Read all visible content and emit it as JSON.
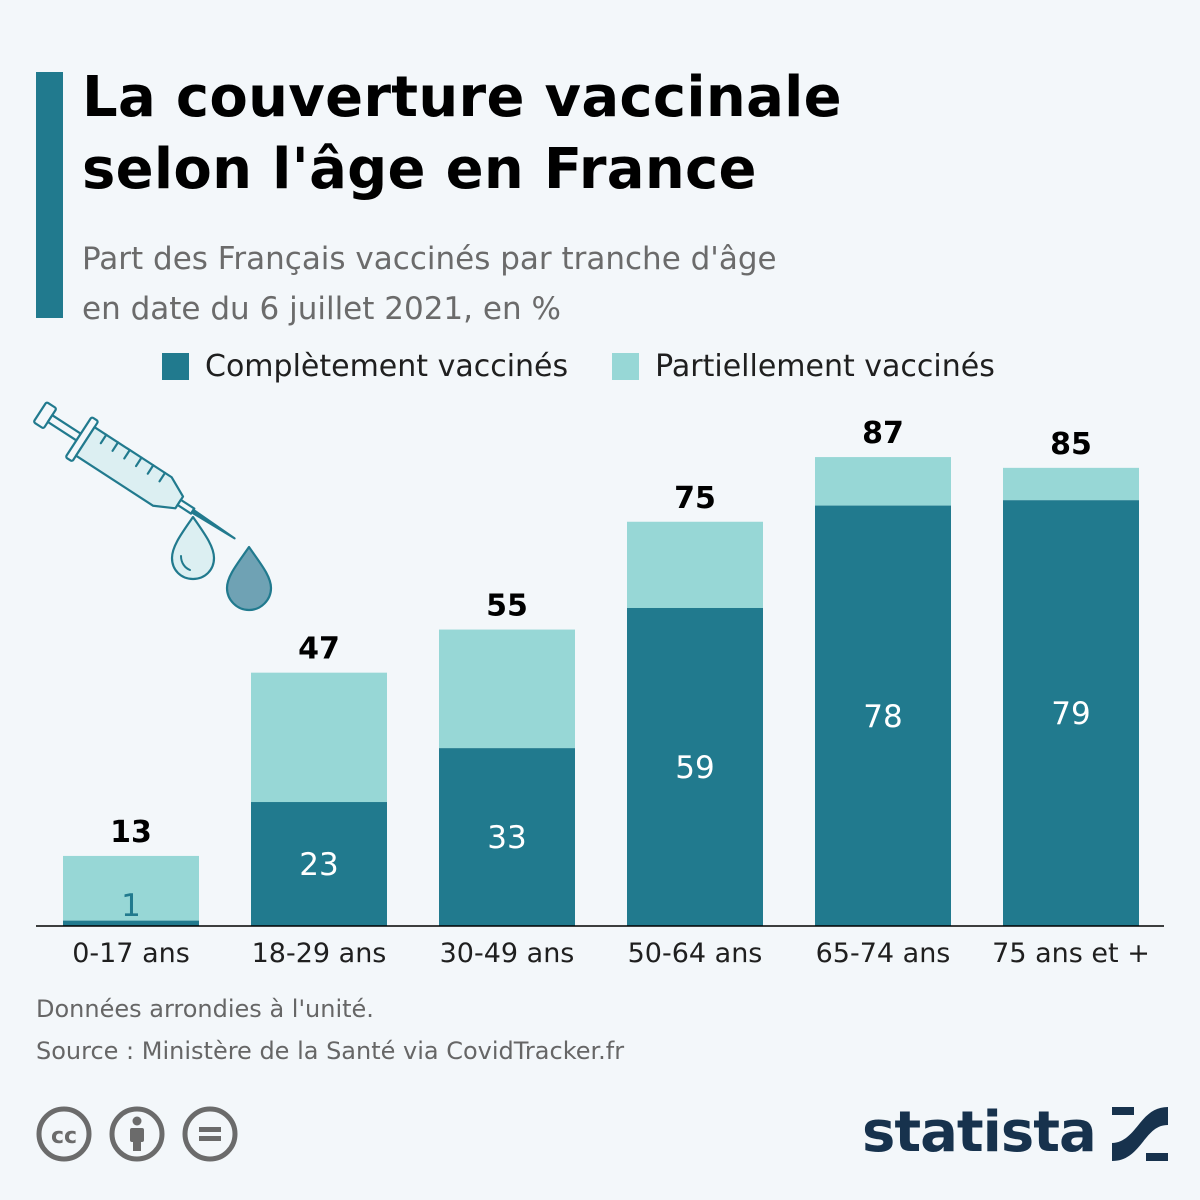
{
  "header": {
    "title_line1": "La couverture vaccinale",
    "title_line2": "selon l'âge en France",
    "subtitle_line1": "Part des Français vaccinés par tranche d'âge",
    "subtitle_line2": "en date du 6 juillet 2021, en %"
  },
  "legend": {
    "full_label": "Complètement vaccinés",
    "partial_label": "Partiellement vaccinés"
  },
  "colors": {
    "full": "#217a8e",
    "partial": "#97d7d6",
    "accent": "#217a8e",
    "brand": "#17324d"
  },
  "chart_data": {
    "type": "bar",
    "stacked": true,
    "categories": [
      "0-17 ans",
      "18-29 ans",
      "30-49 ans",
      "50-64 ans",
      "65-74 ans",
      "75 ans et +"
    ],
    "series": [
      {
        "name": "Complètement vaccinés",
        "values": [
          1,
          23,
          33,
          59,
          78,
          79
        ]
      },
      {
        "name": "Partiellement vaccinés",
        "values": [
          12,
          24,
          22,
          16,
          9,
          6
        ]
      }
    ],
    "totals": [
      13,
      47,
      55,
      75,
      87,
      85
    ],
    "ylim": [
      0,
      100
    ],
    "grid": false,
    "legend_position": "top"
  },
  "footer": {
    "note": "Données arrondies à l'unité.",
    "source": "Source : Ministère de la Santé via CovidTracker.fr",
    "brand": "statista"
  },
  "icons": {
    "illustration": "syringe-icon",
    "license": [
      "cc-icon",
      "attribution-icon",
      "no-derivatives-icon"
    ],
    "brand_logo": "statista-logo-icon"
  }
}
